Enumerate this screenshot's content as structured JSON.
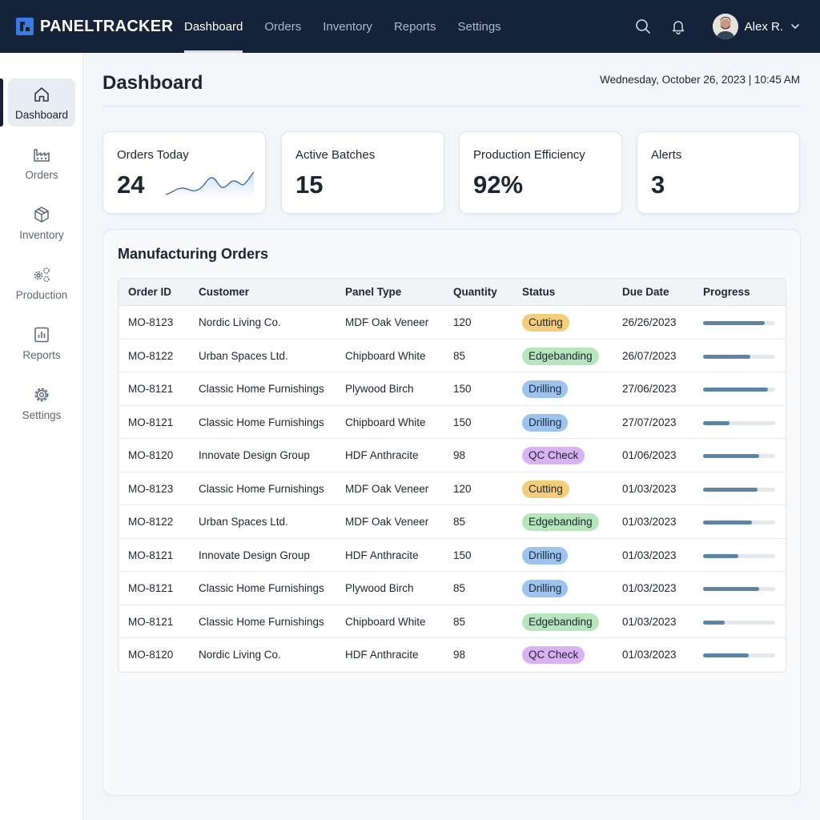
{
  "brand": {
    "name": "PANELTRACKER"
  },
  "nav": [
    {
      "label": "Dashboard",
      "active": true
    },
    {
      "label": "Orders",
      "active": false
    },
    {
      "label": "Inventory",
      "active": false
    },
    {
      "label": "Reports",
      "active": false
    },
    {
      "label": "Settings",
      "active": false
    }
  ],
  "user": {
    "name": "Alex R."
  },
  "icons": {
    "search": "search-icon",
    "notifications": "bell-icon",
    "user_menu": "chevron-down-icon"
  },
  "sidebar": {
    "items": [
      {
        "label": "Dashboard",
        "icon": "home-icon",
        "active": true
      },
      {
        "label": "Orders",
        "icon": "factory-icon",
        "active": false
      },
      {
        "label": "Inventory",
        "icon": "box-icon",
        "active": false
      },
      {
        "label": "Production",
        "icon": "gears-icon",
        "active": false
      },
      {
        "label": "Reports",
        "icon": "bar-chart-icon",
        "active": false
      },
      {
        "label": "Settings",
        "icon": "gear-icon",
        "active": false
      }
    ]
  },
  "page": {
    "title": "Dashboard",
    "datetime": "Wednesday, October 26, 2023 | 10:45 AM"
  },
  "stats": [
    {
      "label": "Orders Today",
      "value": "24"
    },
    {
      "label": "Active Batches",
      "value": "15"
    },
    {
      "label": "Production Efficiency",
      "value": "92%"
    },
    {
      "label": "Alerts",
      "value": "3"
    }
  ],
  "orders": {
    "title": "Manufacturing Orders",
    "columns": [
      "Order ID",
      "Customer",
      "Panel Type",
      "Quantity",
      "Status",
      "Due Date",
      "Progress"
    ],
    "rows": [
      {
        "id": "MO-8123",
        "customer": "Nordic Living Co.",
        "panel": "MDF Oak Veneer",
        "qty": "120",
        "status": "Cutting",
        "due": "26/26/2023",
        "progress": 0.85
      },
      {
        "id": "MO-8122",
        "customer": "Urban Spaces Ltd.",
        "panel": "Chipboard White",
        "qty": "85",
        "status": "Edgebanding",
        "due": "26/07/2023",
        "progress": 0.65
      },
      {
        "id": "MO-8121",
        "customer": "Classic Home Furnishings",
        "panel": "Plywood Birch",
        "qty": "150",
        "status": "Drilling",
        "due": "27/06/2023",
        "progress": 0.9
      },
      {
        "id": "MO-8121",
        "customer": "Classic Home Furnishings",
        "panel": "Chipboard White",
        "qty": "150",
        "status": "Drilling",
        "due": "27/07/2023",
        "progress": 0.37
      },
      {
        "id": "MO-8120",
        "customer": "Innovate Design Group",
        "panel": "HDF Anthracite",
        "qty": "98",
        "status": "QC Check",
        "due": "01/06/2023",
        "progress": 0.78
      },
      {
        "id": "MO-8123",
        "customer": "Classic Home Furnishings",
        "panel": "MDF Oak Veneer",
        "qty": "120",
        "status": "Cutting",
        "due": "01/03/2023",
        "progress": 0.76
      },
      {
        "id": "MO-8122",
        "customer": "Urban Spaces Ltd.",
        "panel": "MDF Oak Veneer",
        "qty": "85",
        "status": "Edgebanding",
        "due": "01/03/2023",
        "progress": 0.68
      },
      {
        "id": "MO-8121",
        "customer": "Innovate Design Group",
        "panel": "HDF Anthracite",
        "qty": "150",
        "status": "Drilling",
        "due": "01/03/2023",
        "progress": 0.49
      },
      {
        "id": "MO-8121",
        "customer": "Classic Home Furnishings",
        "panel": "Plywood Birch",
        "qty": "85",
        "status": "Drilling",
        "due": "01/03/2023",
        "progress": 0.78
      },
      {
        "id": "MO-8121",
        "customer": "Classic Home Furnishings",
        "panel": "Chipboard White",
        "qty": "85",
        "status": "Edgebanding",
        "due": "01/03/2023",
        "progress": 0.3
      },
      {
        "id": "MO-8120",
        "customer": "Nordic Living Co.",
        "panel": "HDF Anthracite",
        "qty": "98",
        "status": "QC Check",
        "due": "01/03/2023",
        "progress": 0.63
      }
    ]
  },
  "colors": {
    "topbar": "#14233a",
    "cutting": "#f4cd7a",
    "edgebanding": "#b7e6bc",
    "drilling": "#9cc4ef",
    "qc_check": "#d8b2f2",
    "progress": "#5b84a6"
  }
}
